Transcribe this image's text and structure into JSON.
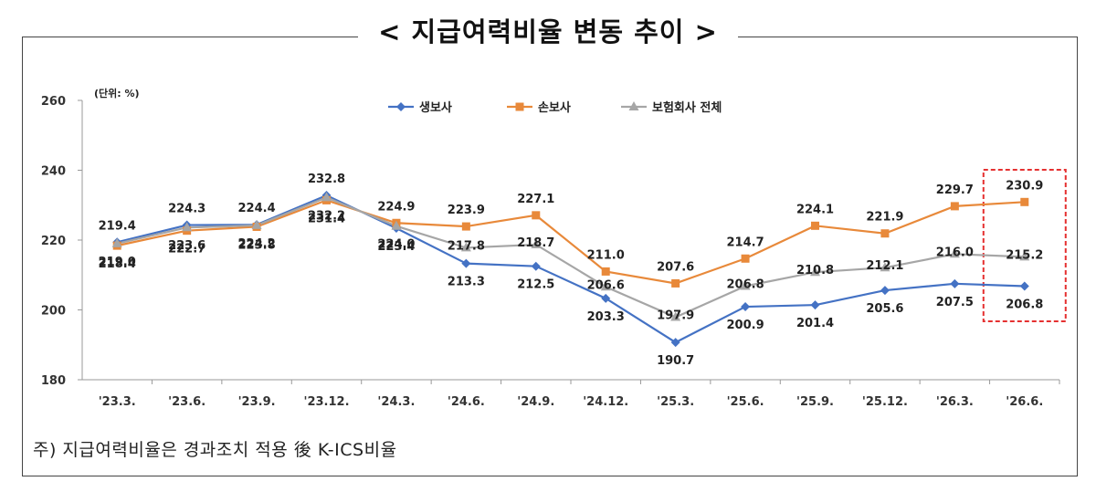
{
  "title": "< 지급여력비율 변동 추이 >",
  "footnote": "주) 지급여력비율은 경과조치 적용 後 K-ICS비율",
  "chart_data": {
    "type": "line",
    "unit_label": "(단위: %)",
    "categories": [
      "'23.3.",
      "'23.6.",
      "'23.9.",
      "'23.12.",
      "'24.3.",
      "'24.6.",
      "'24.9.",
      "'24.12.",
      "'25.3.",
      "'25.6.",
      "'25.9.",
      "'25.12.",
      "'26.3.",
      "'26.6."
    ],
    "ylim": [
      180,
      260
    ],
    "yticks": [
      180,
      200,
      220,
      240,
      260
    ],
    "grid": false,
    "legend": "top-center",
    "series": [
      {
        "name": "생보사",
        "color": "#4472C4",
        "marker": "diamond",
        "values": [
          219.4,
          224.3,
          224.4,
          232.8,
          223.4,
          213.3,
          212.5,
          203.3,
          190.7,
          200.9,
          201.4,
          205.6,
          207.5,
          206.8
        ]
      },
      {
        "name": "손보사",
        "color": "#E8893A",
        "marker": "square",
        "values": [
          218.4,
          222.7,
          223.8,
          231.4,
          224.9,
          223.9,
          227.1,
          211.0,
          207.6,
          214.7,
          224.1,
          221.9,
          229.7,
          230.9
        ]
      },
      {
        "name": "보험회사 전체",
        "color": "#A6A6A6",
        "marker": "triangle",
        "values": [
          219.0,
          223.6,
          224.2,
          232.2,
          224.0,
          217.8,
          218.7,
          206.6,
          197.9,
          206.8,
          210.8,
          212.1,
          216.0,
          215.2
        ]
      }
    ],
    "highlight_category": "'26.6."
  }
}
